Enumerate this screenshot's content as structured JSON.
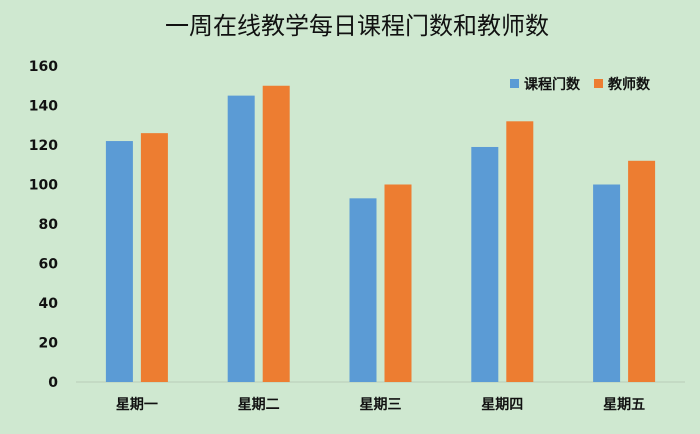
{
  "chart_data": {
    "type": "bar",
    "title": "一周在线教学每日课程门数和教师数",
    "xlabel": "",
    "ylabel": "",
    "categories": [
      "星期一",
      "星期二",
      "星期三",
      "星期四",
      "星期五"
    ],
    "series": [
      {
        "name": "课程门数",
        "values": [
          122,
          145,
          93,
          119,
          100
        ],
        "color": "#5b9bd5"
      },
      {
        "name": "教师数",
        "values": [
          126,
          150,
          100,
          132,
          112
        ],
        "color": "#ed7d31"
      }
    ],
    "ylim": [
      0,
      160
    ],
    "yticks": [
      0,
      20,
      40,
      60,
      80,
      100,
      120,
      140,
      160
    ],
    "grid": false,
    "legend_position": "top-right",
    "background_color": "#cfe8d0"
  }
}
